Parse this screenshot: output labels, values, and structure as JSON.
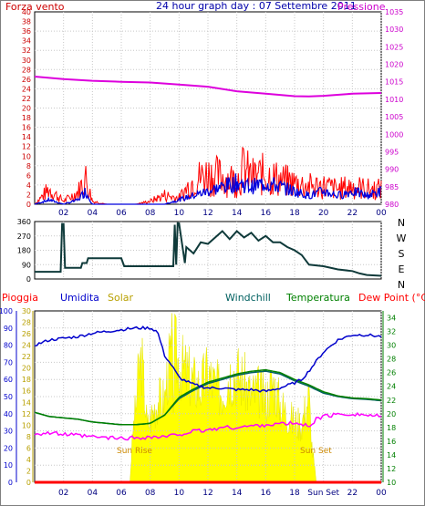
{
  "top": {
    "title": "24 hour graph day : 07 Settembre 2011",
    "left_label": "Forza vento",
    "right_label": "Pressione",
    "colors": {
      "wind": "#ff0000",
      "avg": "#0000dd",
      "pressure": "#dd00dd",
      "left_axis": "#cc0000",
      "right_axis": "#cc00cc"
    }
  },
  "direction": {
    "compass": [
      "N",
      "W",
      "S",
      "E",
      "N"
    ],
    "color": "#0f3a3a"
  },
  "bottom": {
    "legend": {
      "rain": "Pioggia",
      "humidity": "Umidita",
      "solar": "Solar",
      "windchill": "Windchill",
      "temperature": "Temperatura",
      "dewpoint": "Dew Point (°C)"
    },
    "sunrise": "Sun Rise",
    "sunset": "Sun Set",
    "sunset_tick": "Sun Set",
    "colors": {
      "humidity": "#0000cc",
      "temperature": "#008000",
      "windchill": "#006060",
      "dewpoint": "#ff00ff",
      "solar": "#ffff00",
      "rain": "#ff0000"
    }
  },
  "chart_data": [
    {
      "type": "line",
      "title": "24 hour graph day : 07 Settembre 2011",
      "x_ticks": [
        "02",
        "04",
        "06",
        "08",
        "10",
        "12",
        "14",
        "16",
        "18",
        "20",
        "22",
        "00"
      ],
      "x_range": [
        0,
        24
      ],
      "y_left": {
        "label": "Forza vento",
        "ticks": [
          0,
          2,
          4,
          6,
          8,
          10,
          12,
          14,
          16,
          18,
          20,
          22,
          24,
          26,
          28,
          30,
          32,
          34,
          36,
          38,
          40
        ],
        "range": [
          0,
          40
        ]
      },
      "y_right": {
        "label": "Pressione",
        "ticks": [
          980,
          985,
          990,
          995,
          1000,
          1005,
          1010,
          1015,
          1020,
          1025,
          1030,
          1035
        ],
        "range": [
          980,
          1035
        ]
      },
      "grid": true,
      "series": [
        {
          "name": "Pressione",
          "axis": "right",
          "x": [
            0,
            2,
            4,
            6,
            8,
            10,
            12,
            14,
            16,
            18,
            19,
            20,
            22,
            24
          ],
          "values": [
            1016.5,
            1015.8,
            1015.3,
            1015.0,
            1014.8,
            1014.2,
            1013.6,
            1012.3,
            1011.6,
            1010.9,
            1010.8,
            1011.0,
            1011.6,
            1011.8
          ]
        },
        {
          "name": "Forza vento",
          "axis": "left",
          "x": [
            0,
            1,
            1.5,
            2,
            3,
            3.5,
            4,
            5,
            6,
            7,
            8,
            9,
            10,
            10.5,
            11,
            12,
            13,
            14,
            14.5,
            15,
            16,
            17,
            18,
            19,
            20,
            21,
            22,
            23,
            24
          ],
          "values": [
            0,
            5,
            3,
            1,
            4,
            9,
            1,
            0,
            0,
            0,
            1,
            3,
            2,
            5,
            8,
            10,
            9,
            8,
            12,
            9,
            10,
            8,
            7,
            6,
            6,
            5,
            6,
            5,
            5
          ]
        },
        {
          "name": "Media vento",
          "axis": "left",
          "x": [
            0,
            1,
            2,
            3,
            3.5,
            4,
            5,
            6,
            7,
            8,
            9,
            10,
            11,
            12,
            13,
            14,
            15,
            16,
            17,
            18,
            19,
            20,
            21,
            22,
            23,
            24
          ],
          "values": [
            0,
            1,
            0,
            1,
            3,
            0,
            0,
            0,
            0,
            0,
            0,
            1,
            2,
            3,
            4,
            5,
            4,
            5,
            4,
            3,
            2,
            3,
            2,
            3,
            2,
            3
          ]
        }
      ]
    },
    {
      "type": "line",
      "y_ticks": [
        0,
        90,
        180,
        270,
        360
      ],
      "y_range": [
        0,
        360
      ],
      "x_range": [
        0,
        24
      ],
      "series": [
        {
          "name": "Direzione vento",
          "x": [
            0,
            1.8,
            1.9,
            2.0,
            2.1,
            3.2,
            3.3,
            3.6,
            3.7,
            3.8,
            3.9,
            5.0,
            6.0,
            6.2,
            7.5,
            9.0,
            9.6,
            9.7,
            9.8,
            9.9,
            10.0,
            10.4,
            10.5,
            11.0,
            11.5,
            12.0,
            12.5,
            13.0,
            13.5,
            14.0,
            14.5,
            15.0,
            15.5,
            16.0,
            16.5,
            17.0,
            17.5,
            18.0,
            18.5,
            19.0,
            20.0,
            21.0,
            22.0,
            22.5,
            23.0,
            24.0
          ],
          "values": [
            45,
            45,
            345,
            345,
            70,
            70,
            100,
            100,
            130,
            130,
            130,
            130,
            130,
            80,
            80,
            80,
            80,
            340,
            90,
            350,
            350,
            100,
            200,
            160,
            230,
            220,
            260,
            300,
            250,
            300,
            260,
            290,
            240,
            270,
            230,
            230,
            200,
            180,
            150,
            90,
            80,
            60,
            50,
            35,
            25,
            20
          ]
        }
      ]
    },
    {
      "type": "line",
      "x_ticks": [
        "02",
        "04",
        "06",
        "08",
        "10",
        "12",
        "14",
        "16",
        "18",
        "Sun Set",
        "22",
        "00"
      ],
      "x_range": [
        0,
        24
      ],
      "y_axes": [
        {
          "label": "Umidita",
          "ticks": [
            0,
            10,
            20,
            30,
            40,
            50,
            60,
            70,
            80,
            90,
            100
          ],
          "range": [
            0,
            100
          ]
        },
        {
          "label": "Solar",
          "ticks": [
            0,
            2,
            4,
            6,
            8,
            10,
            12,
            14,
            16,
            18,
            20,
            22,
            24,
            26,
            28,
            30
          ],
          "range": [
            0,
            30
          ]
        },
        {
          "label": "Temperatura",
          "ticks": [
            10,
            12,
            14,
            16,
            18,
            20,
            22,
            24,
            26,
            28,
            30,
            32,
            34
          ],
          "range": [
            10,
            35
          ]
        }
      ],
      "grid": true,
      "series": [
        {
          "name": "Umidita",
          "axis": "Umidita",
          "x": [
            0,
            1,
            2,
            3,
            4,
            5,
            6,
            7,
            8,
            8.5,
            9,
            9.5,
            10,
            11,
            12,
            13,
            14,
            15,
            16,
            17,
            18,
            18.5,
            19,
            20,
            21,
            22,
            23,
            24
          ],
          "values": [
            80,
            83,
            84,
            85,
            87,
            88,
            89,
            90,
            90,
            88,
            74,
            68,
            61,
            57,
            55,
            55,
            54,
            54,
            53,
            55,
            58,
            60,
            65,
            76,
            83,
            86,
            86,
            85
          ]
        },
        {
          "name": "Temperatura",
          "axis": "Temperatura",
          "x": [
            0,
            1,
            2,
            3,
            4,
            5,
            6,
            7,
            8,
            9,
            10,
            11,
            12,
            13,
            14,
            15,
            16,
            17,
            18,
            19,
            20,
            21,
            22,
            23,
            24
          ],
          "values": [
            20.2,
            19.6,
            19.4,
            19.2,
            18.8,
            18.6,
            18.4,
            18.4,
            18.6,
            19.8,
            22.4,
            23.6,
            24.6,
            25.2,
            25.8,
            26.2,
            26.4,
            26.0,
            25.0,
            24.2,
            23.2,
            22.6,
            22.3,
            22.2,
            22.0
          ]
        },
        {
          "name": "Windchill",
          "axis": "Temperatura",
          "x": [
            0,
            1,
            2,
            3,
            4,
            5,
            6,
            7,
            8,
            9,
            10,
            11,
            12,
            13,
            14,
            15,
            16,
            17,
            18,
            19,
            20,
            21,
            22,
            23,
            24
          ],
          "values": [
            20.2,
            19.6,
            19.4,
            19.2,
            18.8,
            18.6,
            18.4,
            18.4,
            18.6,
            19.8,
            22.2,
            23.4,
            24.4,
            25.0,
            25.6,
            26.0,
            26.2,
            25.8,
            24.8,
            24.0,
            23.0,
            22.5,
            22.2,
            22.1,
            21.9
          ]
        },
        {
          "name": "Dew Point",
          "axis": "Temperatura",
          "x": [
            0,
            1,
            2,
            3,
            4,
            5,
            6,
            7,
            8,
            9,
            10,
            11,
            12,
            13,
            14,
            15,
            16,
            17,
            18,
            19,
            19.5,
            20,
            21,
            22,
            23,
            24
          ],
          "values": [
            17.1,
            17.2,
            17.0,
            16.8,
            16.6,
            16.5,
            16.4,
            16.5,
            16.6,
            16.6,
            17.0,
            17.4,
            17.6,
            18.0,
            18.0,
            18.2,
            18.4,
            18.5,
            18.6,
            18.2,
            19.2,
            19.6,
            19.9,
            20.0,
            19.8,
            19.6
          ]
        },
        {
          "name": "Solar",
          "axis": "Solar",
          "x": [
            0,
            6.6,
            6.8,
            7.0,
            7.2,
            7.4,
            7.6,
            7.8,
            8.0,
            8.5,
            9.0,
            9.2,
            9.4,
            9.5,
            9.6,
            9.7,
            10.0,
            10.5,
            11.0,
            11.5,
            12.0,
            12.5,
            13.0,
            13.5,
            14.0,
            14.5,
            15.0,
            15.5,
            16.0,
            16.5,
            17.0,
            17.5,
            18.0,
            18.5,
            19.0,
            19.2,
            19.5,
            24.0
          ],
          "values": [
            0,
            0,
            11,
            16,
            24,
            27,
            20,
            12,
            14,
            18,
            18,
            24,
            27,
            29,
            20,
            29,
            26,
            24,
            22,
            21,
            24,
            21,
            20,
            24,
            24,
            22,
            19,
            20,
            18,
            22,
            17,
            15,
            13,
            13,
            19,
            8,
            0,
            0
          ]
        },
        {
          "name": "Pioggia",
          "axis": "Umidita",
          "x": [
            0,
            24
          ],
          "values": [
            0,
            0
          ]
        }
      ],
      "annotations": [
        "Sun Rise",
        "Sun Set"
      ]
    }
  ]
}
